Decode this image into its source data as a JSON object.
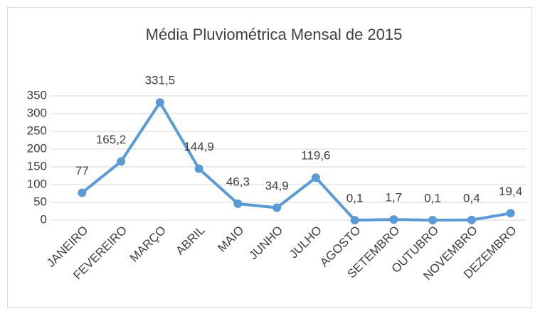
{
  "chart_data": {
    "type": "line",
    "title": "Média Pluviométrica Mensal de 2015",
    "categories": [
      "JANEIRO",
      "FEVEREIRO",
      "MARÇO",
      "ABRIL",
      "MAIO",
      "JUNHO",
      "JULHO",
      "AGOSTO",
      "SETEMBRO",
      "OUTUBRO",
      "NOVEMBRO",
      "DEZEMBRO"
    ],
    "values": [
      77,
      165.2,
      331.5,
      144.9,
      46.3,
      34.9,
      119.6,
      0.1,
      1.7,
      0.1,
      0.4,
      19.4
    ],
    "value_labels": [
      "77",
      "165,2",
      "331,5",
      "144,9",
      "46,3",
      "34,9",
      "119,6",
      "0,1",
      "1,7",
      "0,1",
      "0,4",
      "19,4"
    ],
    "color": "#5b9bd5",
    "ylim": [
      0,
      350
    ],
    "yticks": [
      0,
      50,
      100,
      150,
      200,
      250,
      300,
      350
    ],
    "grid": true
  }
}
